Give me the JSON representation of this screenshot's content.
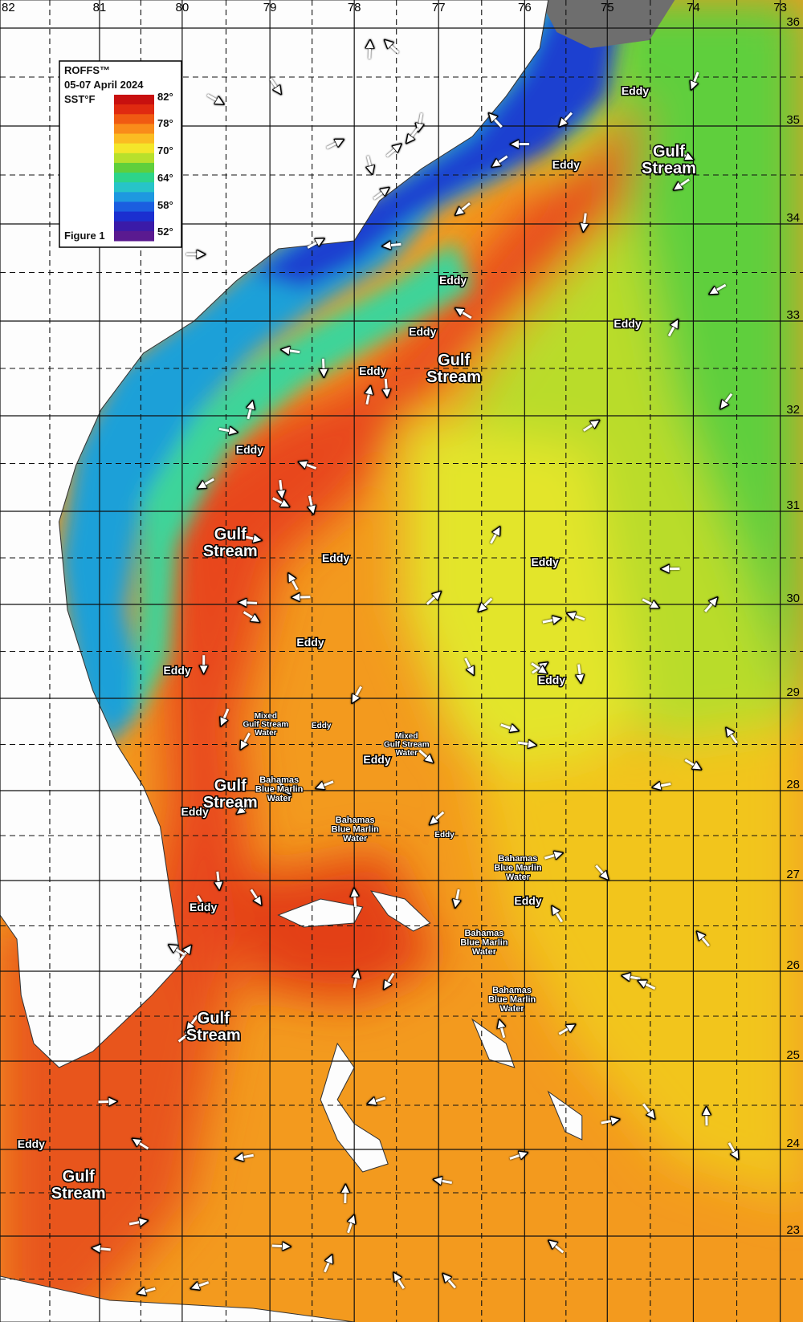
{
  "legend": {
    "brand": "ROFFS™",
    "dates": "05-07 April 2024",
    "unit": "SST°F",
    "figure": "Figure 1",
    "scale_labels": [
      "82°",
      "78°",
      "70°",
      "64°",
      "58°",
      "52°"
    ]
  },
  "lon_labels": [
    "82",
    "81",
    "80",
    "79",
    "78",
    "77",
    "76",
    "75",
    "74",
    "73"
  ],
  "lat_labels": [
    "36",
    "35",
    "34",
    "33",
    "32",
    "31",
    "30",
    "29",
    "28",
    "27",
    "26",
    "25",
    "24",
    "23"
  ],
  "annotations": [
    {
      "lines": [
        "Gulf",
        "Stream"
      ]
    },
    {
      "lines": [
        "Gulf",
        "Stream"
      ]
    },
    {
      "lines": [
        "Gulf",
        "Stream"
      ]
    },
    {
      "lines": [
        "Gulf",
        "Stream"
      ]
    },
    {
      "lines": [
        "Gulf",
        "Stream"
      ]
    },
    {
      "lines": [
        "Gulf",
        "Stream"
      ]
    },
    {
      "lines": [
        "Eddy"
      ]
    },
    {
      "lines": [
        "Eddy"
      ]
    },
    {
      "lines": [
        "Eddy"
      ]
    },
    {
      "lines": [
        "Eddy"
      ]
    },
    {
      "lines": [
        "Eddy"
      ]
    },
    {
      "lines": [
        "Eddy"
      ]
    },
    {
      "lines": [
        "Eddy"
      ]
    },
    {
      "lines": [
        "Eddy"
      ]
    },
    {
      "lines": [
        "Eddy"
      ]
    },
    {
      "lines": [
        "Eddy"
      ]
    },
    {
      "lines": [
        "Eddy"
      ]
    },
    {
      "lines": [
        "Eddy"
      ]
    },
    {
      "lines": [
        "Eddy"
      ]
    },
    {
      "lines": [
        "Eddy"
      ]
    },
    {
      "lines": [
        "Eddy"
      ]
    },
    {
      "lines": [
        "Eddy"
      ]
    },
    {
      "lines": [
        "Eddy"
      ]
    },
    {
      "lines": [
        "Eddy"
      ]
    },
    {
      "lines": [
        "Eddy"
      ]
    },
    {
      "lines": [
        "Mixed",
        "Gulf Stream",
        "Water"
      ]
    },
    {
      "lines": [
        "Mixed",
        "Gulf Stream",
        "Water"
      ]
    },
    {
      "lines": [
        "Bahamas",
        "Blue Marlin",
        "Water"
      ]
    },
    {
      "lines": [
        "Bahamas",
        "Blue Marlin",
        "Water"
      ]
    },
    {
      "lines": [
        "Bahamas",
        "Blue Marlin",
        "Water"
      ]
    },
    {
      "lines": [
        "Bahamas",
        "Blue Marlin",
        "Water"
      ]
    },
    {
      "lines": [
        "Bahamas",
        "Blue Marlin",
        "Water"
      ]
    }
  ]
}
